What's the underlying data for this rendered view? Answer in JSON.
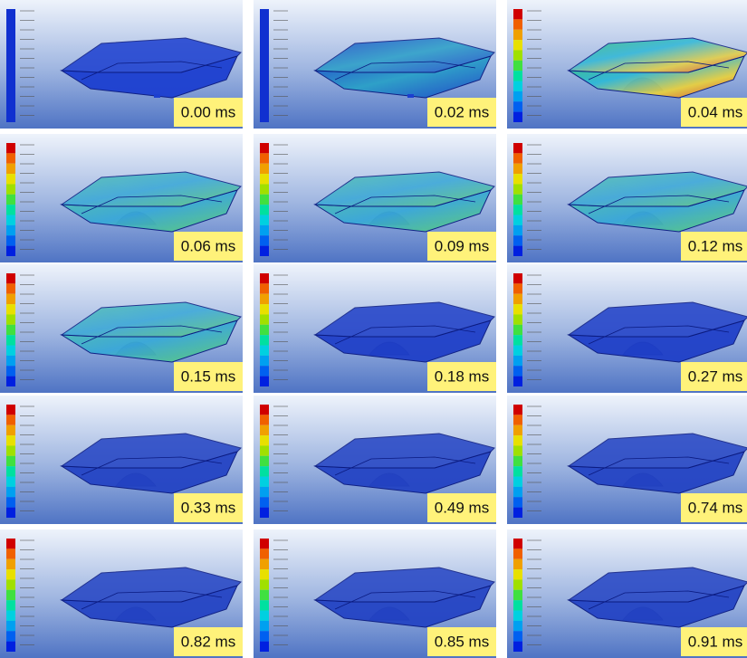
{
  "panels": [
    {
      "label": "0.00 ms"
    },
    {
      "label": "0.02 ms"
    },
    {
      "label": "0.04 ms"
    },
    {
      "label": "0.06 ms"
    },
    {
      "label": "0.09 ms"
    },
    {
      "label": "0.12 ms"
    },
    {
      "label": "0.15 ms"
    },
    {
      "label": "0.18 ms"
    },
    {
      "label": "0.27 ms"
    },
    {
      "label": "0.33 ms"
    },
    {
      "label": "0.49 ms"
    },
    {
      "label": "0.74 ms"
    },
    {
      "label": "0.82 ms"
    },
    {
      "label": "0.85 ms"
    },
    {
      "label": "0.91 ms"
    }
  ]
}
